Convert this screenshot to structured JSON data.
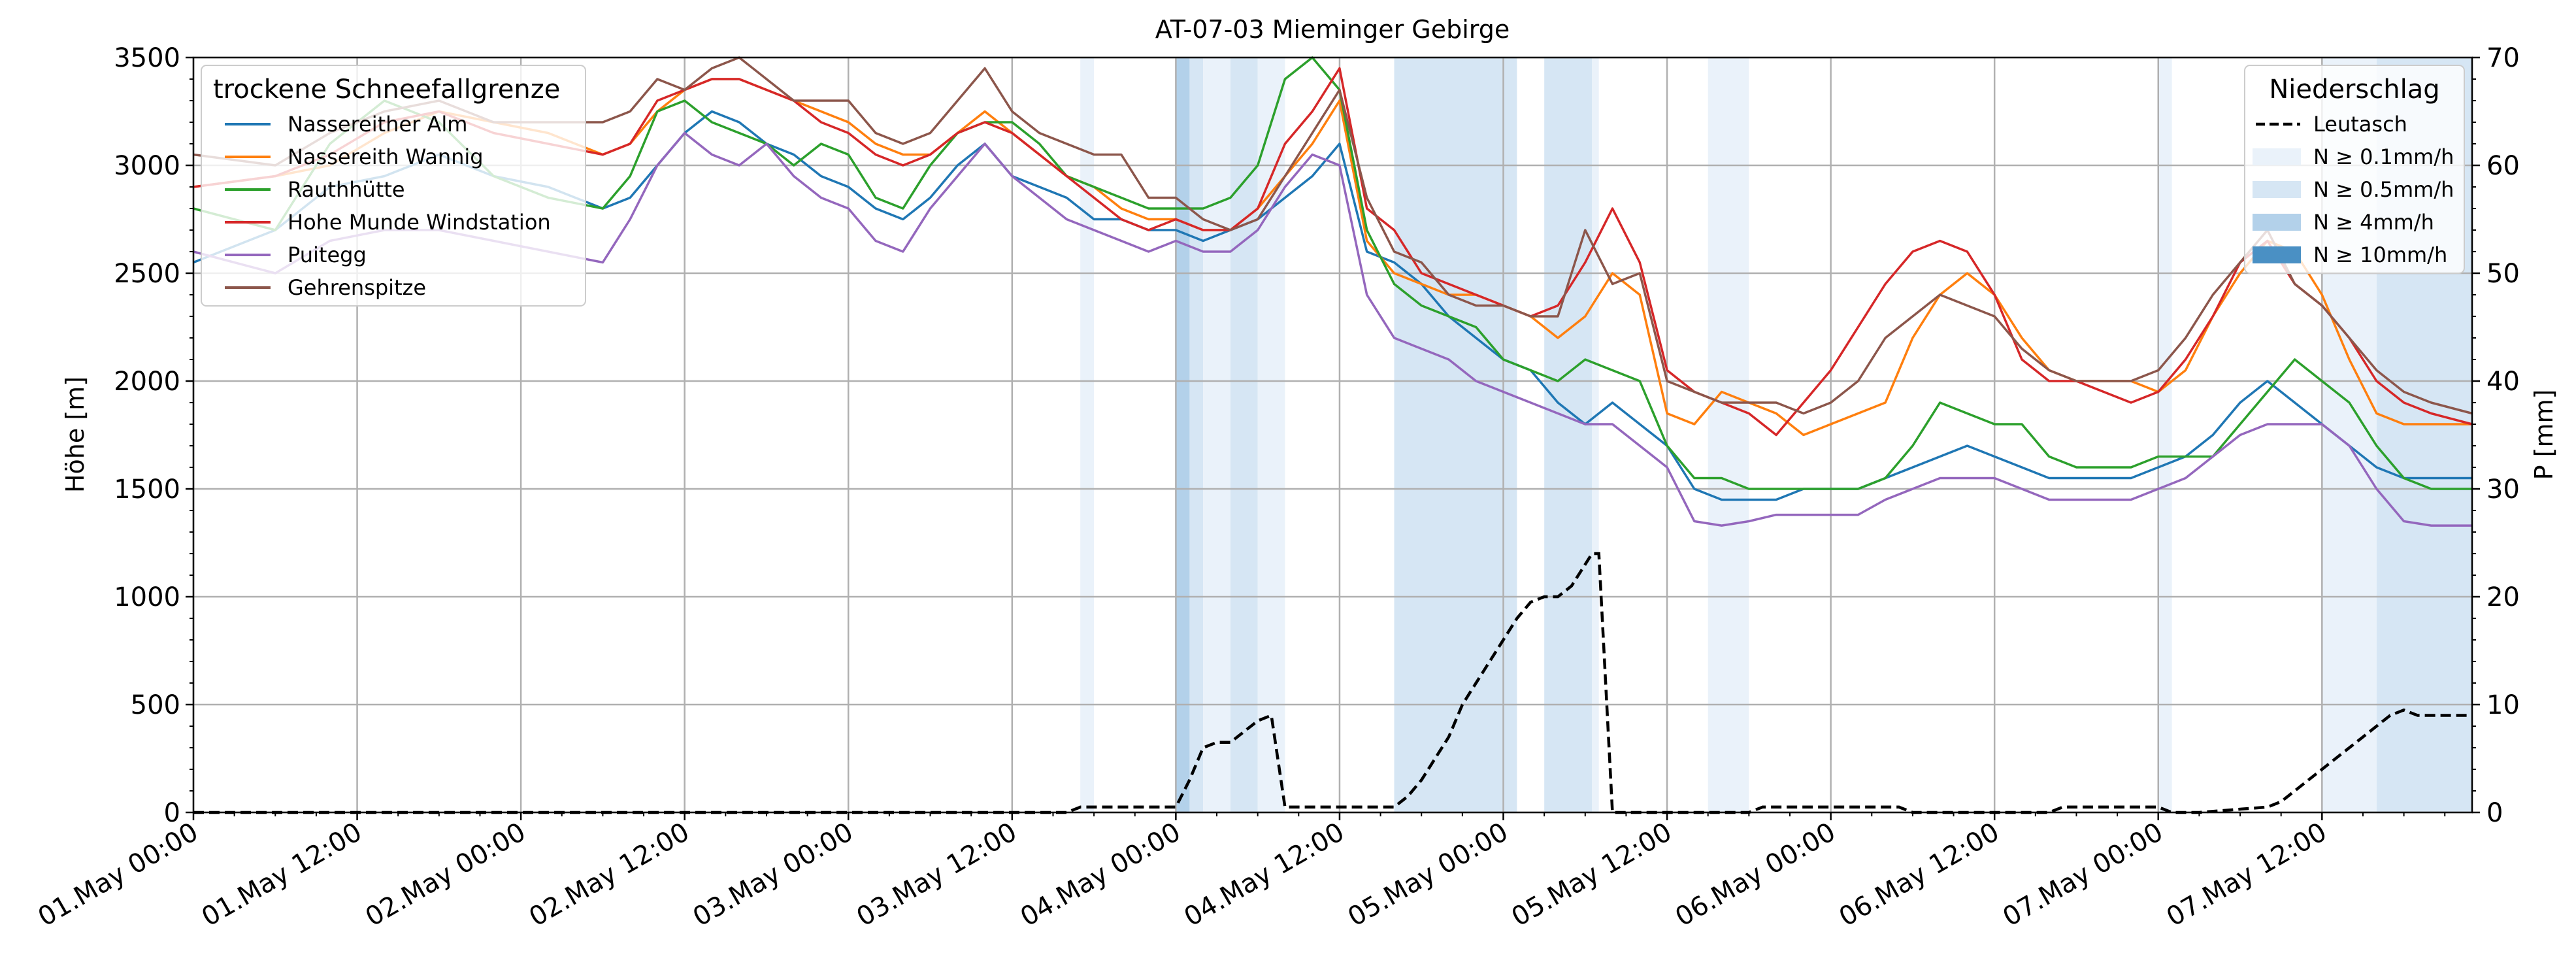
{
  "chart_data": {
    "type": "line",
    "title": "AT-07-03 Mieminger Gebirge",
    "ylabel": "Höhe [m]",
    "y2label": "P [mm]",
    "ylim": [
      0,
      3500
    ],
    "y2lim": [
      0,
      70
    ],
    "xlim_hours": [
      0,
      167
    ],
    "yticks": [
      "0",
      "500",
      "1000",
      "1500",
      "2000",
      "2500",
      "3000",
      "3500"
    ],
    "y2ticks": [
      "0",
      "10",
      "20",
      "30",
      "40",
      "50",
      "60",
      "70"
    ],
    "xticks": [
      "01.May 00:00",
      "01.May 12:00",
      "02.May 00:00",
      "02.May 12:00",
      "03.May 00:00",
      "03.May 12:00",
      "04.May 00:00",
      "04.May 12:00",
      "05.May 00:00",
      "05.May 12:00",
      "06.May 00:00",
      "06.May 12:00",
      "07.May 00:00",
      "07.May 12:00"
    ],
    "grid": true,
    "legend_snow": {
      "title": "trockene Schneefallgrenze",
      "placement": "top-left",
      "entries": [
        "Nassereither Alm",
        "Nassereith Wannig",
        "Rauthhütte",
        "Hohe Munde Windstation",
        "Puitegg",
        "Gehrenspitze"
      ]
    },
    "legend_precip": {
      "title": "Niederschlag",
      "placement": "top-right",
      "entries": [
        "Leutasch",
        "N ≥ 0.1mm/h",
        "N ≥ 0.5mm/h",
        "N ≥ 4mm/h",
        "N ≥ 10mm/h"
      ]
    },
    "series": [
      {
        "name": "Nassereither Alm",
        "color": "#1f77b4",
        "x": [
          0,
          6,
          10,
          14,
          18,
          22,
          26,
          30,
          32,
          34,
          36,
          38,
          40,
          42,
          44,
          46,
          48,
          50,
          52,
          54,
          56,
          58,
          60,
          62,
          64,
          66,
          68,
          70,
          72,
          74,
          76,
          78,
          80,
          82,
          84,
          86,
          88,
          90,
          92,
          94,
          96,
          98,
          100,
          102,
          104,
          106,
          108,
          110,
          112,
          114,
          116,
          118,
          120,
          122,
          124,
          126,
          128,
          130,
          132,
          134,
          136,
          138,
          140,
          142,
          144,
          146,
          148,
          150,
          152,
          154,
          156,
          158,
          160,
          162,
          164,
          167
        ],
        "y": [
          2550,
          2700,
          2900,
          2950,
          3050,
          2950,
          2900,
          2800,
          2850,
          3000,
          3150,
          3250,
          3200,
          3100,
          3050,
          2950,
          2900,
          2800,
          2750,
          2850,
          3000,
          3100,
          2950,
          2900,
          2850,
          2750,
          2750,
          2700,
          2700,
          2650,
          2700,
          2750,
          2850,
          2950,
          3100,
          2600,
          2550,
          2450,
          2300,
          2200,
          2100,
          2050,
          1900,
          1800,
          1900,
          1800,
          1700,
          1500,
          1450,
          1450,
          1450,
          1500,
          1500,
          1500,
          1550,
          1600,
          1650,
          1700,
          1650,
          1600,
          1550,
          1550,
          1550,
          1550,
          1600,
          1650,
          1750,
          1900,
          2000,
          1900,
          1800,
          1700,
          1600,
          1550,
          1550,
          1550
        ]
      },
      {
        "name": "Nassereith Wannig",
        "color": "#ff7f0e",
        "x": [
          0,
          6,
          10,
          14,
          18,
          22,
          26,
          30,
          32,
          34,
          36,
          38,
          40,
          42,
          44,
          46,
          48,
          50,
          52,
          54,
          56,
          58,
          60,
          62,
          64,
          66,
          68,
          70,
          72,
          74,
          76,
          78,
          80,
          82,
          84,
          86,
          88,
          90,
          92,
          94,
          96,
          98,
          100,
          102,
          104,
          106,
          108,
          110,
          112,
          114,
          116,
          118,
          120,
          122,
          124,
          126,
          128,
          130,
          132,
          134,
          136,
          138,
          140,
          142,
          144,
          146,
          148,
          150,
          152,
          154,
          156,
          158,
          160,
          162,
          164,
          167
        ],
        "y": [
          2900,
          2950,
          3000,
          3150,
          3250,
          3200,
          3150,
          3050,
          3100,
          3250,
          3350,
          3400,
          3400,
          3350,
          3300,
          3250,
          3200,
          3100,
          3050,
          3050,
          3150,
          3250,
          3150,
          3050,
          2950,
          2900,
          2800,
          2750,
          2750,
          2700,
          2700,
          2800,
          2950,
          3100,
          3300,
          2650,
          2500,
          2450,
          2400,
          2400,
          2350,
          2300,
          2200,
          2300,
          2500,
          2400,
          1850,
          1800,
          1950,
          1900,
          1850,
          1750,
          1800,
          1850,
          1900,
          2200,
          2400,
          2500,
          2400,
          2200,
          2050,
          2000,
          2000,
          2000,
          1950,
          2050,
          2300,
          2500,
          2650,
          2600,
          2400,
          2100,
          1850,
          1800,
          1800,
          1800
        ]
      },
      {
        "name": "Rauthhütte",
        "color": "#2ca02c",
        "x": [
          0,
          6,
          10,
          14,
          18,
          22,
          26,
          30,
          32,
          34,
          36,
          38,
          40,
          42,
          44,
          46,
          48,
          50,
          52,
          54,
          56,
          58,
          60,
          62,
          64,
          66,
          68,
          70,
          72,
          74,
          76,
          78,
          80,
          82,
          84,
          86,
          88,
          90,
          92,
          94,
          96,
          98,
          100,
          102,
          104,
          106,
          108,
          110,
          112,
          114,
          116,
          118,
          120,
          122,
          124,
          126,
          128,
          130,
          132,
          134,
          136,
          138,
          140,
          142,
          144,
          146,
          148,
          150,
          152,
          154,
          156,
          158,
          160,
          162,
          164,
          167
        ],
        "y": [
          2800,
          2700,
          3100,
          3300,
          3200,
          2950,
          2850,
          2800,
          2950,
          3250,
          3300,
          3200,
          3150,
          3100,
          3000,
          3100,
          3050,
          2850,
          2800,
          3000,
          3150,
          3200,
          3200,
          3100,
          2950,
          2900,
          2850,
          2800,
          2800,
          2800,
          2850,
          3000,
          3400,
          3500,
          3350,
          2700,
          2450,
          2350,
          2300,
          2250,
          2100,
          2050,
          2000,
          2100,
          2050,
          2000,
          1700,
          1550,
          1550,
          1500,
          1500,
          1500,
          1500,
          1500,
          1550,
          1700,
          1900,
          1850,
          1800,
          1800,
          1650,
          1600,
          1600,
          1600,
          1650,
          1650,
          1650,
          1800,
          1950,
          2100,
          2000,
          1900,
          1700,
          1550,
          1500,
          1500
        ]
      },
      {
        "name": "Hohe Munde Windstation",
        "color": "#d62728",
        "x": [
          0,
          6,
          10,
          14,
          18,
          22,
          26,
          30,
          32,
          34,
          36,
          38,
          40,
          42,
          44,
          46,
          48,
          50,
          52,
          54,
          56,
          58,
          60,
          62,
          64,
          66,
          68,
          70,
          72,
          74,
          76,
          78,
          80,
          82,
          84,
          86,
          88,
          90,
          92,
          94,
          96,
          98,
          100,
          102,
          104,
          106,
          108,
          110,
          112,
          114,
          116,
          118,
          120,
          122,
          124,
          126,
          128,
          130,
          132,
          134,
          136,
          138,
          140,
          142,
          144,
          146,
          148,
          150,
          152,
          154,
          156,
          158,
          160,
          162,
          164,
          167
        ],
        "y": [
          2900,
          2950,
          3050,
          3200,
          3250,
          3150,
          3100,
          3050,
          3100,
          3300,
          3350,
          3400,
          3400,
          3350,
          3300,
          3200,
          3150,
          3050,
          3000,
          3050,
          3150,
          3200,
          3150,
          3050,
          2950,
          2850,
          2750,
          2700,
          2750,
          2700,
          2700,
          2800,
          3100,
          3250,
          3450,
          2800,
          2700,
          2500,
          2450,
          2400,
          2350,
          2300,
          2350,
          2550,
          2800,
          2550,
          2050,
          1950,
          1900,
          1850,
          1750,
          1900,
          2050,
          2250,
          2450,
          2600,
          2650,
          2600,
          2400,
          2100,
          2000,
          2000,
          1950,
          1900,
          1950,
          2100,
          2300,
          2550,
          2650,
          2450,
          2350,
          2200,
          2000,
          1900,
          1850,
          1800
        ]
      },
      {
        "name": "Puitegg",
        "color": "#9467bd",
        "x": [
          0,
          6,
          10,
          14,
          18,
          22,
          26,
          30,
          32,
          34,
          36,
          38,
          40,
          42,
          44,
          46,
          48,
          50,
          52,
          54,
          56,
          58,
          60,
          62,
          64,
          66,
          68,
          70,
          72,
          74,
          76,
          78,
          80,
          82,
          84,
          86,
          88,
          90,
          92,
          94,
          96,
          98,
          100,
          102,
          104,
          106,
          108,
          110,
          112,
          114,
          116,
          118,
          120,
          122,
          124,
          126,
          128,
          130,
          132,
          134,
          136,
          138,
          140,
          142,
          144,
          146,
          148,
          150,
          152,
          154,
          156,
          158,
          160,
          162,
          164,
          167
        ],
        "y": [
          2600,
          2500,
          2650,
          2700,
          2700,
          2650,
          2600,
          2550,
          2750,
          3000,
          3150,
          3050,
          3000,
          3100,
          2950,
          2850,
          2800,
          2650,
          2600,
          2800,
          2950,
          3100,
          2950,
          2850,
          2750,
          2700,
          2650,
          2600,
          2650,
          2600,
          2600,
          2700,
          2900,
          3050,
          3000,
          2400,
          2200,
          2150,
          2100,
          2000,
          1950,
          1900,
          1850,
          1800,
          1800,
          1700,
          1600,
          1350,
          1330,
          1350,
          1380,
          1380,
          1380,
          1380,
          1450,
          1500,
          1550,
          1550,
          1550,
          1500,
          1450,
          1450,
          1450,
          1450,
          1500,
          1550,
          1650,
          1750,
          1800,
          1800,
          1800,
          1700,
          1500,
          1350,
          1330,
          1330
        ]
      },
      {
        "name": "Gehrenspitze",
        "color": "#8c564b",
        "x": [
          0,
          6,
          10,
          14,
          18,
          22,
          26,
          30,
          32,
          34,
          36,
          38,
          40,
          42,
          44,
          46,
          48,
          50,
          52,
          54,
          56,
          58,
          60,
          62,
          64,
          66,
          68,
          70,
          72,
          74,
          76,
          78,
          80,
          82,
          84,
          86,
          88,
          90,
          92,
          94,
          96,
          98,
          100,
          102,
          104,
          106,
          108,
          110,
          112,
          114,
          116,
          118,
          120,
          122,
          124,
          126,
          128,
          130,
          132,
          134,
          136,
          138,
          140,
          142,
          144,
          146,
          148,
          150,
          152,
          154,
          156,
          158,
          160,
          162,
          164,
          167
        ],
        "y": [
          3050,
          3000,
          3150,
          3250,
          3300,
          3200,
          3200,
          3200,
          3250,
          3400,
          3350,
          3450,
          3500,
          3400,
          3300,
          3300,
          3300,
          3150,
          3100,
          3150,
          3300,
          3450,
          3250,
          3150,
          3100,
          3050,
          3050,
          2850,
          2850,
          2750,
          2700,
          2750,
          2950,
          3150,
          3350,
          2850,
          2600,
          2550,
          2400,
          2350,
          2350,
          2300,
          2300,
          2700,
          2450,
          2500,
          2000,
          1950,
          1900,
          1900,
          1900,
          1850,
          1900,
          2000,
          2200,
          2300,
          2400,
          2350,
          2300,
          2150,
          2050,
          2000,
          2000,
          2000,
          2050,
          2200,
          2400,
          2550,
          2700,
          2450,
          2350,
          2200,
          2050,
          1950,
          1900,
          1850
        ]
      }
    ],
    "precip_series": {
      "name": "Leutasch",
      "color": "#000000",
      "x": [
        0,
        64,
        65,
        66,
        72,
        73,
        74,
        75,
        76,
        77,
        78,
        79,
        80,
        81,
        82,
        84,
        86,
        88,
        89,
        90,
        91,
        92,
        93,
        94,
        95,
        96,
        97,
        98,
        99,
        100,
        101,
        102,
        102.5,
        103,
        104,
        114,
        115,
        125,
        126,
        136,
        137,
        144,
        145,
        146,
        147,
        150,
        152,
        153,
        154,
        155,
        156,
        157,
        158,
        159,
        160,
        161,
        162,
        163,
        164,
        165,
        166,
        167
      ],
      "y": [
        0,
        0,
        0.5,
        0.5,
        0.5,
        3,
        6,
        6.5,
        6.5,
        7.5,
        8.5,
        9,
        0.5,
        0.5,
        0.5,
        0.5,
        0.5,
        0.5,
        1.5,
        3,
        5,
        7,
        10,
        12,
        14,
        16,
        18,
        19.5,
        20,
        20,
        21,
        23,
        24,
        24,
        0,
        0,
        0.5,
        0.5,
        0,
        0,
        0.5,
        0.5,
        0,
        0,
        0,
        0.3,
        0.5,
        1,
        2,
        3,
        4,
        5,
        6,
        7,
        8,
        9,
        9.5,
        9,
        9,
        9,
        9,
        9
      ]
    },
    "precip_bands": {
      "colors": {
        "0.1": "#eaf2fa",
        "0.5": "#d6e6f4",
        "4": "#b3d1ea",
        "10": "#4a90c4"
      },
      "intervals": [
        {
          "start": 65,
          "end": 66,
          "level": "0.1"
        },
        {
          "start": 72,
          "end": 74,
          "level": "0.5"
        },
        {
          "start": 72,
          "end": 73,
          "level": "4"
        },
        {
          "start": 74,
          "end": 76,
          "level": "0.1"
        },
        {
          "start": 76,
          "end": 78,
          "level": "0.5"
        },
        {
          "start": 78,
          "end": 80,
          "level": "0.1"
        },
        {
          "start": 88,
          "end": 97,
          "level": "0.5"
        },
        {
          "start": 99,
          "end": 102.5,
          "level": "0.5"
        },
        {
          "start": 102.5,
          "end": 103,
          "level": "0.1"
        },
        {
          "start": 111,
          "end": 114,
          "level": "0.1"
        },
        {
          "start": 144,
          "end": 145,
          "level": "0.1"
        },
        {
          "start": 156,
          "end": 160,
          "level": "0.1"
        },
        {
          "start": 160,
          "end": 167,
          "level": "0.5"
        }
      ]
    }
  }
}
